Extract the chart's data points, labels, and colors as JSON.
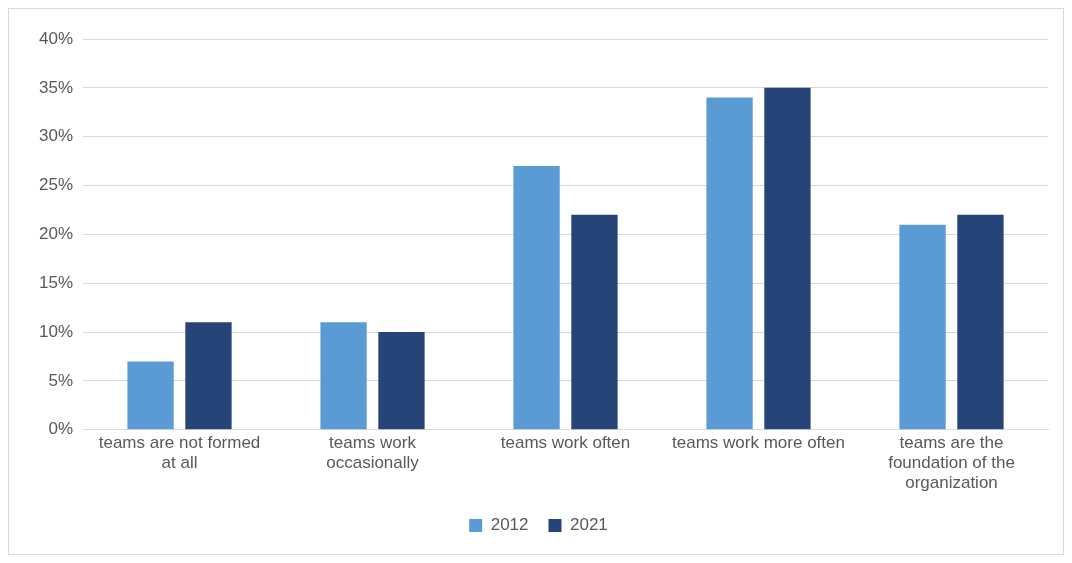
{
  "chart_data": {
    "type": "bar",
    "categories": [
      "teams are not formed at all",
      "teams work occasionally",
      "teams work often",
      "teams work more often",
      "teams are the foundation of the organization"
    ],
    "series": [
      {
        "name": "2012",
        "color": "#5b9bd5",
        "values": [
          7,
          11,
          27,
          34,
          21
        ]
      },
      {
        "name": "2021",
        "color": "#264478",
        "values": [
          11,
          10,
          22,
          35,
          22
        ]
      }
    ],
    "ylim": [
      0,
      40
    ],
    "yticks": [
      {
        "value": 0,
        "label": "0%"
      },
      {
        "value": 5,
        "label": "5%"
      },
      {
        "value": 10,
        "label": "10%"
      },
      {
        "value": 15,
        "label": "15%"
      },
      {
        "value": 20,
        "label": "20%"
      },
      {
        "value": 25,
        "label": "25%"
      },
      {
        "value": 30,
        "label": "30%"
      },
      {
        "value": 35,
        "label": "35%"
      },
      {
        "value": 40,
        "label": "40%"
      }
    ],
    "grid": "y",
    "legend": "bottom"
  }
}
